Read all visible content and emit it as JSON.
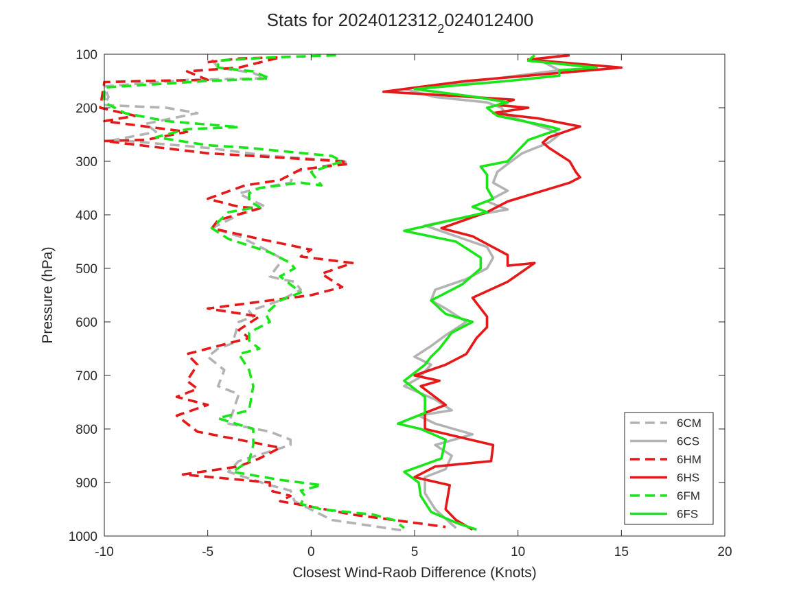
{
  "chart_data": {
    "type": "line",
    "title_main": "Stats for 2024012312",
    "title_sub": "2",
    "title_tail": "024012400",
    "xlabel": "Closest Wind-Raob Difference (Knots)",
    "ylabel": "Pressure (hPa)",
    "xlim": [
      -10,
      20
    ],
    "ylim": [
      100,
      1000
    ],
    "y_reversed": true,
    "xticks": [
      "-10",
      "-5",
      "0",
      "5",
      "10",
      "15",
      "20"
    ],
    "yticks": [
      "100",
      "200",
      "300",
      "400",
      "500",
      "600",
      "700",
      "800",
      "900",
      "1000"
    ],
    "grid": false,
    "legend_position": "bottom-right",
    "series": [
      {
        "name": "6CM",
        "color": "#b3b3b3",
        "dash": true,
        "points": [
          [
            -4.8,
            110
          ],
          [
            -4.5,
            125
          ],
          [
            -2.8,
            135
          ],
          [
            -2.2,
            145
          ],
          [
            -6,
            148
          ],
          [
            -10,
            160
          ],
          [
            -9.8,
            180
          ],
          [
            -10,
            195
          ],
          [
            -7,
            200
          ],
          [
            -5.5,
            210
          ],
          [
            -8,
            230
          ],
          [
            -7.5,
            245
          ],
          [
            -9.5,
            260
          ],
          [
            -5,
            275
          ],
          [
            -2,
            290
          ],
          [
            1.8,
            300
          ],
          [
            0.5,
            310
          ],
          [
            -0.8,
            320
          ],
          [
            -1,
            340
          ],
          [
            -2.5,
            350
          ],
          [
            -3.5,
            360
          ],
          [
            -3,
            370
          ],
          [
            -2.2,
            385
          ],
          [
            -3.5,
            400
          ],
          [
            -4.8,
            425
          ],
          [
            -3.5,
            440
          ],
          [
            -2.2,
            465
          ],
          [
            -1.5,
            480
          ],
          [
            -1.5,
            490
          ],
          [
            -2,
            515
          ],
          [
            -1.5,
            520
          ],
          [
            -0.8,
            525
          ],
          [
            -0.5,
            540
          ],
          [
            -1.5,
            560
          ],
          [
            -3,
            580
          ],
          [
            -2.8,
            590
          ],
          [
            -3.5,
            600
          ],
          [
            -3.8,
            640
          ],
          [
            -4.5,
            650
          ],
          [
            -5,
            665
          ],
          [
            -4.2,
            690
          ],
          [
            -4.5,
            720
          ],
          [
            -3.5,
            735
          ],
          [
            -3.8,
            770
          ],
          [
            -4,
            790
          ],
          [
            -2,
            805
          ],
          [
            -1,
            820
          ],
          [
            -1,
            830
          ],
          [
            -3.5,
            860
          ],
          [
            -4,
            880
          ],
          [
            -2,
            905
          ],
          [
            -1,
            915
          ],
          [
            -0.8,
            935
          ],
          [
            1,
            970
          ],
          [
            4.5,
            990
          ]
        ]
      },
      {
        "name": "6CS",
        "color": "#b3b3b3",
        "dash": false,
        "points": [
          [
            12,
            103
          ],
          [
            11,
            110
          ],
          [
            12,
            130
          ],
          [
            8,
            150
          ],
          [
            4.5,
            165
          ],
          [
            6,
            180
          ],
          [
            8.5,
            190
          ],
          [
            9.2,
            200
          ],
          [
            9.5,
            215
          ],
          [
            11.5,
            240
          ],
          [
            12,
            250
          ],
          [
            11.5,
            265
          ],
          [
            10.2,
            285
          ],
          [
            9.5,
            305
          ],
          [
            9,
            320
          ],
          [
            8.8,
            340
          ],
          [
            9.5,
            355
          ],
          [
            8.5,
            375
          ],
          [
            9.5,
            390
          ],
          [
            8,
            400
          ],
          [
            5.5,
            420
          ],
          [
            7,
            440
          ],
          [
            8.5,
            460
          ],
          [
            8.8,
            480
          ],
          [
            8.5,
            500
          ],
          [
            7.5,
            520
          ],
          [
            6,
            540
          ],
          [
            5.8,
            560
          ],
          [
            6.5,
            575
          ],
          [
            7.5,
            600
          ],
          [
            6.5,
            625
          ],
          [
            5.8,
            645
          ],
          [
            5,
            665
          ],
          [
            5.8,
            680
          ],
          [
            5.2,
            705
          ],
          [
            4.5,
            720
          ],
          [
            6,
            745
          ],
          [
            6.8,
            765
          ],
          [
            5.2,
            775
          ],
          [
            6,
            790
          ],
          [
            7.8,
            810
          ],
          [
            6,
            830
          ],
          [
            6.8,
            850
          ],
          [
            6.5,
            875
          ],
          [
            5.5,
            890
          ],
          [
            5.5,
            920
          ],
          [
            6,
            950
          ],
          [
            7,
            985
          ]
        ]
      },
      {
        "name": "6HM",
        "color": "#e6191a",
        "dash": true,
        "points": [
          [
            -5,
            115
          ],
          [
            -3.5,
            108
          ],
          [
            -1.5,
            106
          ],
          [
            -3.5,
            125
          ],
          [
            -6,
            132
          ],
          [
            -5,
            148
          ],
          [
            -8,
            150
          ],
          [
            -10,
            152
          ],
          [
            -10.2,
            200
          ],
          [
            -8.5,
            215
          ],
          [
            -10,
            225
          ],
          [
            -8,
            235
          ],
          [
            -6,
            245
          ],
          [
            -8,
            260
          ],
          [
            -10,
            262
          ],
          [
            -5,
            285
          ],
          [
            1.5,
            300
          ],
          [
            1.8,
            305
          ],
          [
            -0.5,
            315
          ],
          [
            -1.5,
            335
          ],
          [
            -3.2,
            345
          ],
          [
            -5,
            370
          ],
          [
            -3.5,
            385
          ],
          [
            -2.5,
            388
          ],
          [
            -4.5,
            410
          ],
          [
            -4.8,
            425
          ],
          [
            -2.5,
            445
          ],
          [
            0,
            465
          ],
          [
            -0.5,
            478
          ],
          [
            2,
            490
          ],
          [
            0.5,
            510
          ],
          [
            1.5,
            535
          ],
          [
            0,
            550
          ],
          [
            -3,
            565
          ],
          [
            -5,
            575
          ],
          [
            -2.5,
            590
          ],
          [
            -3.5,
            615
          ],
          [
            -3,
            630
          ],
          [
            -6,
            660
          ],
          [
            -5.5,
            680
          ],
          [
            -6,
            710
          ],
          [
            -5.5,
            725
          ],
          [
            -6.5,
            740
          ],
          [
            -5,
            755
          ],
          [
            -6.5,
            775
          ],
          [
            -6,
            790
          ],
          [
            -5.5,
            805
          ],
          [
            -1.5,
            835
          ],
          [
            -2.5,
            855
          ],
          [
            -3.5,
            870
          ],
          [
            -6.2,
            885
          ],
          [
            -2,
            900
          ],
          [
            -2,
            915
          ],
          [
            -1,
            925
          ],
          [
            -1.5,
            935
          ],
          [
            0,
            945
          ],
          [
            2,
            960
          ],
          [
            4,
            970
          ],
          [
            6.5,
            983
          ]
        ]
      },
      {
        "name": "6HS",
        "color": "#e6191a",
        "dash": false,
        "points": [
          [
            12.5,
            102
          ],
          [
            10.5,
            110
          ],
          [
            15,
            125
          ],
          [
            7.5,
            150
          ],
          [
            3.5,
            170
          ],
          [
            7,
            178
          ],
          [
            9.8,
            185
          ],
          [
            9,
            195
          ],
          [
            10.5,
            200
          ],
          [
            8.8,
            210
          ],
          [
            11,
            220
          ],
          [
            13,
            235
          ],
          [
            11.5,
            255
          ],
          [
            11.2,
            265
          ],
          [
            11.5,
            275
          ],
          [
            12.5,
            300
          ],
          [
            12.8,
            320
          ],
          [
            13,
            330
          ],
          [
            12.5,
            340
          ],
          [
            9.5,
            375
          ],
          [
            8.5,
            395
          ],
          [
            6.3,
            425
          ],
          [
            7.8,
            440
          ],
          [
            9.5,
            475
          ],
          [
            9.5,
            495
          ],
          [
            10.8,
            490
          ],
          [
            9.5,
            525
          ],
          [
            7.8,
            555
          ],
          [
            8.5,
            590
          ],
          [
            8.5,
            610
          ],
          [
            8,
            630
          ],
          [
            7.5,
            660
          ],
          [
            6.5,
            680
          ],
          [
            5,
            700
          ],
          [
            6.2,
            710
          ],
          [
            5.3,
            720
          ],
          [
            6.5,
            755
          ],
          [
            5.5,
            770
          ],
          [
            5.5,
            800
          ],
          [
            8.8,
            830
          ],
          [
            8.7,
            860
          ],
          [
            6,
            870
          ],
          [
            5,
            890
          ],
          [
            6.7,
            905
          ],
          [
            6.5,
            950
          ],
          [
            7,
            970
          ],
          [
            7.8,
            988
          ]
        ]
      },
      {
        "name": "6FM",
        "color": "#19e619",
        "dash": true,
        "points": [
          [
            1.2,
            102
          ],
          [
            -2,
            106
          ],
          [
            -4.5,
            112
          ],
          [
            -4.5,
            125
          ],
          [
            -2.8,
            132
          ],
          [
            -2,
            145
          ],
          [
            -5,
            150
          ],
          [
            -10,
            162
          ],
          [
            -10,
            190
          ],
          [
            -9,
            210
          ],
          [
            -7,
            225
          ],
          [
            -3.5,
            236
          ],
          [
            -6,
            240
          ],
          [
            -7.5,
            255
          ],
          [
            -5,
            270
          ],
          [
            -3,
            275
          ],
          [
            1,
            290
          ],
          [
            1.5,
            300
          ],
          [
            0,
            320
          ],
          [
            0.5,
            345
          ],
          [
            -0.5,
            340
          ],
          [
            -2.5,
            350
          ],
          [
            -3,
            360
          ],
          [
            -3,
            375
          ],
          [
            -2.5,
            385
          ],
          [
            -4,
            395
          ],
          [
            -4.8,
            425
          ],
          [
            -4,
            445
          ],
          [
            -2,
            470
          ],
          [
            -1,
            490
          ],
          [
            -0.8,
            500
          ],
          [
            -1.5,
            515
          ],
          [
            -1,
            530
          ],
          [
            -0.5,
            545
          ],
          [
            -1.5,
            560
          ],
          [
            -2.2,
            585
          ],
          [
            -2,
            600
          ],
          [
            -3,
            620
          ],
          [
            -3,
            635
          ],
          [
            -2.5,
            650
          ],
          [
            -3.5,
            660
          ],
          [
            -3,
            690
          ],
          [
            -2.8,
            720
          ],
          [
            -3,
            765
          ],
          [
            -4.5,
            780
          ],
          [
            -2.8,
            800
          ],
          [
            -2.8,
            830
          ],
          [
            -3,
            860
          ],
          [
            -3.8,
            880
          ],
          [
            -1.5,
            895
          ],
          [
            0.5,
            905
          ],
          [
            -0.5,
            915
          ],
          [
            -0.3,
            925
          ],
          [
            -0.5,
            940
          ],
          [
            0.5,
            950
          ],
          [
            3,
            960
          ],
          [
            4,
            970
          ],
          [
            4.5,
            985
          ]
        ]
      },
      {
        "name": "6FS",
        "color": "#19e619",
        "dash": false,
        "points": [
          [
            10.8,
            102
          ],
          [
            10.5,
            112
          ],
          [
            13.8,
            125
          ],
          [
            12,
            130
          ],
          [
            12,
            140
          ],
          [
            9.5,
            150
          ],
          [
            5,
            165
          ],
          [
            8,
            180
          ],
          [
            9.5,
            190
          ],
          [
            8.5,
            200
          ],
          [
            9,
            215
          ],
          [
            11.5,
            235
          ],
          [
            12,
            240
          ],
          [
            10.5,
            260
          ],
          [
            10,
            280
          ],
          [
            9.5,
            300
          ],
          [
            8.2,
            310
          ],
          [
            8.5,
            325
          ],
          [
            8.5,
            350
          ],
          [
            8.8,
            370
          ],
          [
            7.8,
            385
          ],
          [
            8.5,
            395
          ],
          [
            4.5,
            430
          ],
          [
            7,
            450
          ],
          [
            8.2,
            480
          ],
          [
            8.2,
            500
          ],
          [
            7.3,
            530
          ],
          [
            5.8,
            560
          ],
          [
            6.5,
            585
          ],
          [
            7.8,
            600
          ],
          [
            6.8,
            620
          ],
          [
            6.2,
            650
          ],
          [
            5.8,
            665
          ],
          [
            5.5,
            680
          ],
          [
            4.5,
            710
          ],
          [
            5.5,
            740
          ],
          [
            5.5,
            770
          ],
          [
            4.2,
            790
          ],
          [
            5.3,
            800
          ],
          [
            6.5,
            820
          ],
          [
            6.3,
            855
          ],
          [
            4.5,
            880
          ],
          [
            5.2,
            900
          ],
          [
            5.3,
            925
          ],
          [
            5.8,
            955
          ],
          [
            7,
            975
          ],
          [
            8,
            988
          ]
        ]
      }
    ]
  }
}
